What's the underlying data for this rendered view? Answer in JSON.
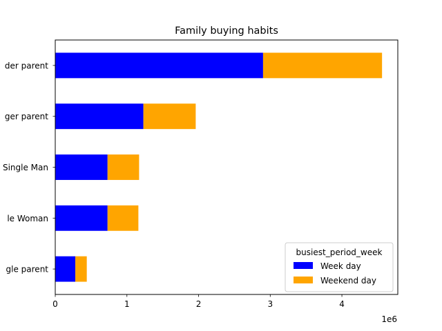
{
  "chart_data": {
    "type": "bar",
    "orientation": "horizontal",
    "stacked": true,
    "title": "Family buying habits",
    "xlabel": "",
    "ylabel": "",
    "x_offset_label": "1e6",
    "xlim": [
      0,
      4.78
    ],
    "xticks": [
      0,
      1,
      2,
      3,
      4
    ],
    "categories": [
      "Single parent",
      "Single Woman",
      "Single Man",
      "Younger parent",
      "Older parent"
    ],
    "category_labels_visible": [
      "gle parent",
      "le Woman",
      "Single Man",
      "ger parent",
      "der parent"
    ],
    "series": [
      {
        "name": "Week day",
        "color": "#0000ff",
        "values": [
          0.28,
          0.73,
          0.73,
          1.23,
          2.9
        ]
      },
      {
        "name": "Weekend day",
        "color": "#ffa500",
        "values": [
          0.16,
          0.43,
          0.44,
          0.73,
          1.66
        ]
      }
    ],
    "legend": {
      "title": "busiest_period_week",
      "position": "lower right"
    },
    "grid": false
  }
}
